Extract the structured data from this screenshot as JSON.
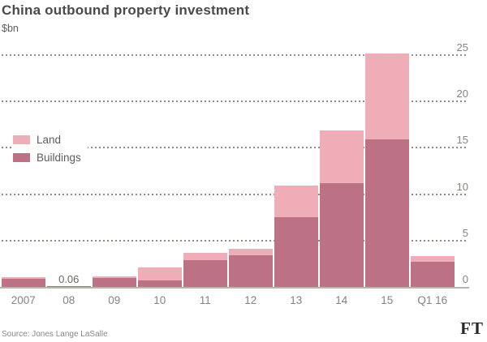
{
  "title": "China outbound property investment",
  "subtitle": "$bn",
  "source": "Source: Jones Lange LaSalle",
  "logo_text": "FT",
  "colors": {
    "background": "#ffffff",
    "land": "#efaeb7",
    "buildings": "#bc7185",
    "gridline": "#908d86",
    "baseline": "#b8b4ad",
    "axis_text": "#87847f",
    "title_text": "#4c4a47"
  },
  "legend": {
    "items": [
      {
        "label": "Land",
        "color": "#efaeb7"
      },
      {
        "label": "Buildings",
        "color": "#bc7185"
      }
    ]
  },
  "chart_data": {
    "type": "bar",
    "stacked": true,
    "title": "China outbound property investment",
    "ylabel": "$bn",
    "xlabel": "",
    "ylim": [
      0,
      25.5
    ],
    "yticks": [
      0,
      5,
      10,
      15,
      20,
      25
    ],
    "grid": "dotted-horizontal",
    "legend_position": "middle-left",
    "categories": [
      "2007",
      "08",
      "09",
      "10",
      "11",
      "12",
      "13",
      "14",
      "15",
      "Q1 16"
    ],
    "series": [
      {
        "name": "Buildings",
        "color": "#bc7185",
        "values": [
          0.9,
          0.06,
          1.0,
          0.7,
          2.9,
          3.4,
          7.5,
          11.2,
          15.9,
          2.7
        ]
      },
      {
        "name": "Land",
        "color": "#efaeb7",
        "values": [
          0.15,
          0,
          0.15,
          1.4,
          0.75,
          0.7,
          3.4,
          5.7,
          9.3,
          0.65
        ]
      }
    ],
    "totals": [
      1.05,
      0.06,
      1.15,
      2.1,
      3.65,
      4.1,
      10.9,
      16.9,
      25.2,
      3.35
    ],
    "annotations": [
      {
        "category_index": 1,
        "text": "0.06"
      }
    ]
  }
}
